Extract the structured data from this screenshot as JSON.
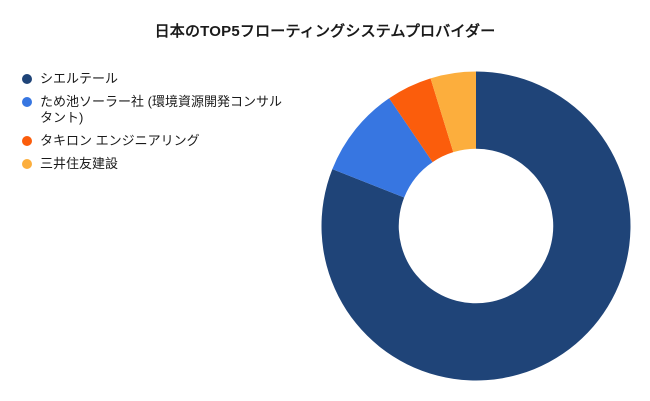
{
  "title": "日本のTOP5フローティングシステムプロバイダー",
  "chart_data": {
    "type": "pie",
    "subtype": "donut",
    "title": "日本のTOP5フローティングシステムプロバイダー",
    "categories": [
      "シエルテール",
      "ため池ソーラー社 (環境資源開発コンサルタント)",
      "タキロン エンジニアリング",
      "三井住友建設"
    ],
    "values": [
      81,
      9.5,
      4.75,
      4.75
    ],
    "unit": "percent-share",
    "colors": [
      "#1F4478",
      "#3776E1",
      "#FB5D0C",
      "#FCAE3D"
    ],
    "start_angle_deg": 0,
    "direction": "clockwise",
    "inner_radius_ratio": 0.5,
    "legend_position": "top-left",
    "data_labels": "none"
  },
  "legend": {
    "items": [
      {
        "label": "シエルテール",
        "color": "#1F4478"
      },
      {
        "label": "ため池ソーラー社 (環境資源開発コンサルタント)",
        "color": "#3776E1"
      },
      {
        "label": "タキロン エンジニアリング",
        "color": "#FB5D0C"
      },
      {
        "label": "三井住友建設",
        "color": "#FCAE3D"
      }
    ]
  },
  "text_color": "#1A1A1A",
  "background_color": "#FFFFFF"
}
